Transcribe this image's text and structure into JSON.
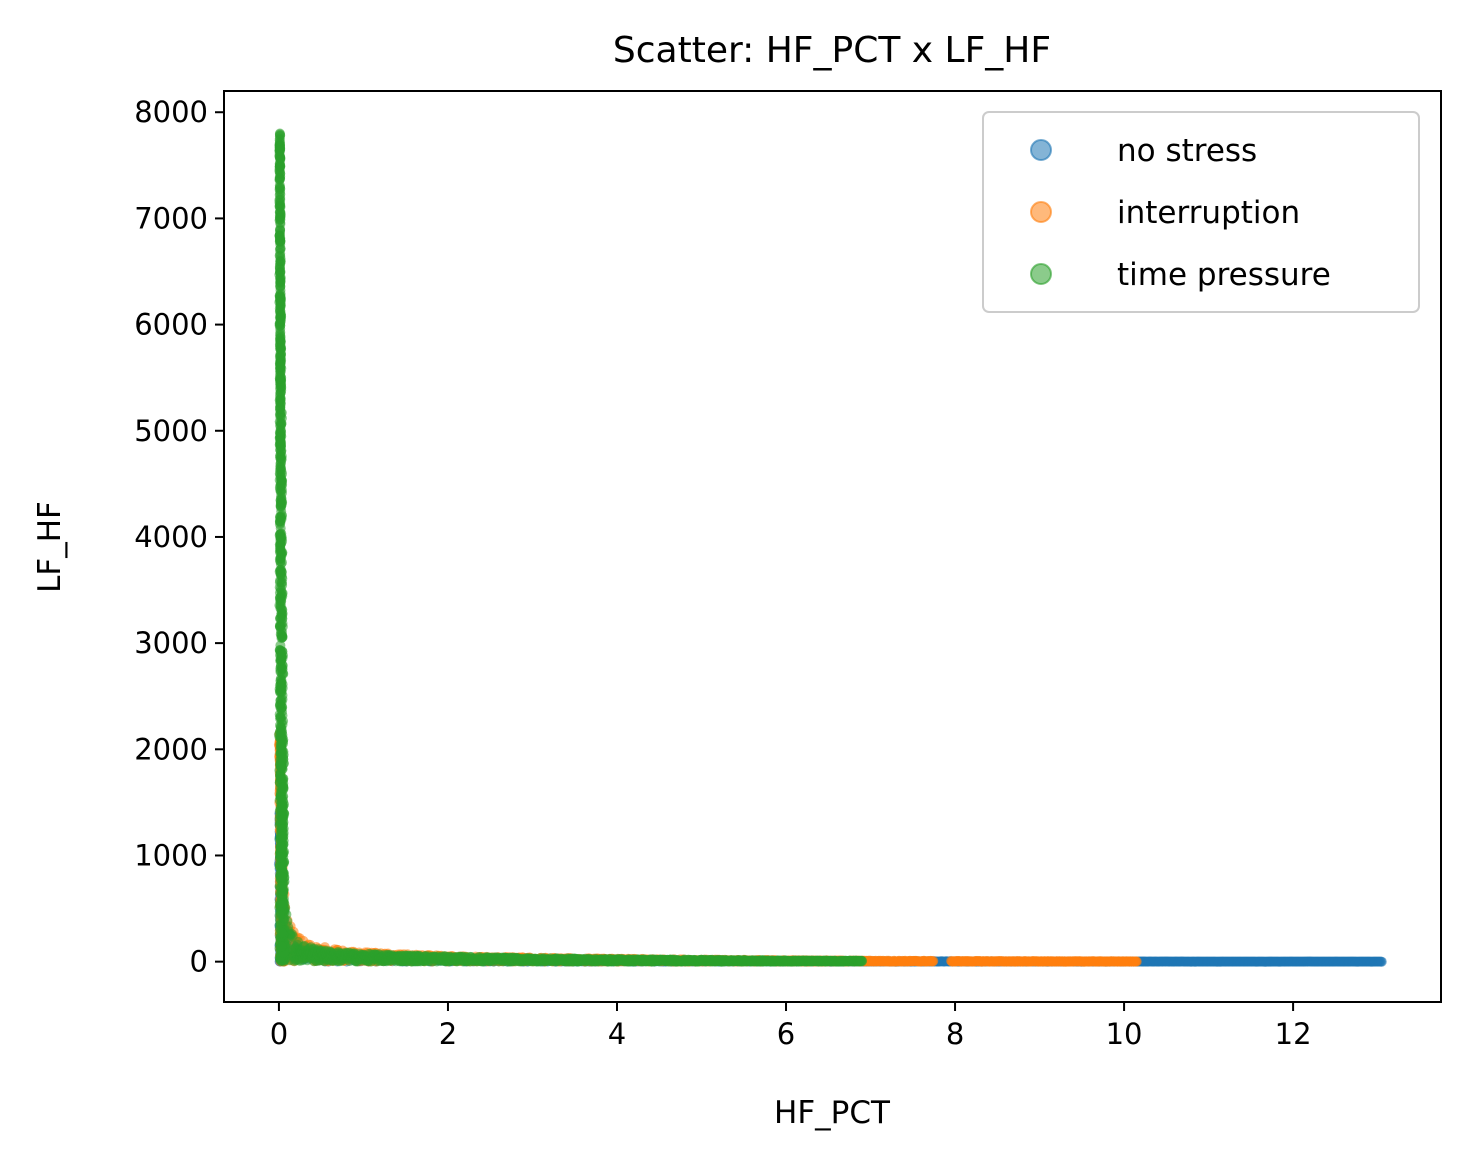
{
  "chart_data": {
    "type": "scatter",
    "title": "Scatter: HF_PCT x LF_HF",
    "xlabel": "HF_PCT",
    "ylabel": "LF_HF",
    "xlim": [
      -0.65,
      13.75
    ],
    "ylim": [
      -380,
      8200
    ],
    "xticks": [
      0,
      2,
      4,
      6,
      8,
      10,
      12
    ],
    "yticks": [
      0,
      1000,
      2000,
      3000,
      4000,
      5000,
      6000,
      7000,
      8000
    ],
    "grid": false,
    "legend": {
      "placement": "top-right"
    },
    "series": [
      {
        "name": "no stress",
        "color": "#1f77b4",
        "xmax": 13.05,
        "points": [
          [
            0.02,
            1400
          ],
          [
            0.03,
            1000
          ],
          [
            0.05,
            700
          ],
          [
            0.08,
            450
          ],
          [
            0.1,
            300
          ],
          [
            0.2,
            150
          ],
          [
            0.5,
            75
          ],
          [
            1,
            45
          ],
          [
            2,
            25
          ],
          [
            3,
            15
          ],
          [
            4,
            10
          ],
          [
            5,
            8
          ],
          [
            6,
            6
          ],
          [
            7,
            4
          ],
          [
            8,
            3
          ],
          [
            9,
            2
          ],
          [
            10,
            2
          ],
          [
            11,
            1
          ],
          [
            12,
            1
          ],
          [
            13,
            1
          ],
          [
            13.05,
            0
          ]
        ]
      },
      {
        "name": "interruption",
        "color": "#ff7f0e",
        "xmax": 10.15,
        "gap": [
          7.75,
          7.95
        ],
        "points": [
          [
            0.01,
            2150
          ],
          [
            0.02,
            1600
          ],
          [
            0.04,
            1000
          ],
          [
            0.06,
            700
          ],
          [
            0.1,
            450
          ],
          [
            0.2,
            250
          ],
          [
            0.4,
            160
          ],
          [
            0.8,
            100
          ],
          [
            1.5,
            70
          ],
          [
            2,
            55
          ],
          [
            3,
            40
          ],
          [
            4,
            28
          ],
          [
            5,
            20
          ],
          [
            6,
            15
          ],
          [
            7,
            10
          ],
          [
            7.7,
            8
          ],
          [
            8,
            7
          ],
          [
            9,
            5
          ],
          [
            10,
            3
          ],
          [
            10.15,
            3
          ]
        ]
      },
      {
        "name": "time pressure",
        "color": "#2ca02c",
        "xmax": 6.9,
        "points": [
          [
            0,
            7800
          ],
          [
            0,
            7000
          ],
          [
            0,
            6000
          ],
          [
            0,
            5000
          ],
          [
            0,
            4000
          ],
          [
            0,
            3000
          ],
          [
            0.01,
            2000
          ],
          [
            0.02,
            1300
          ],
          [
            0.05,
            700
          ],
          [
            0.1,
            400
          ],
          [
            0.2,
            200
          ],
          [
            0.5,
            110
          ],
          [
            1,
            75
          ],
          [
            2,
            50
          ],
          [
            3,
            35
          ],
          [
            4,
            25
          ],
          [
            5,
            18
          ],
          [
            6,
            12
          ],
          [
            6.9,
            10
          ]
        ]
      }
    ]
  }
}
